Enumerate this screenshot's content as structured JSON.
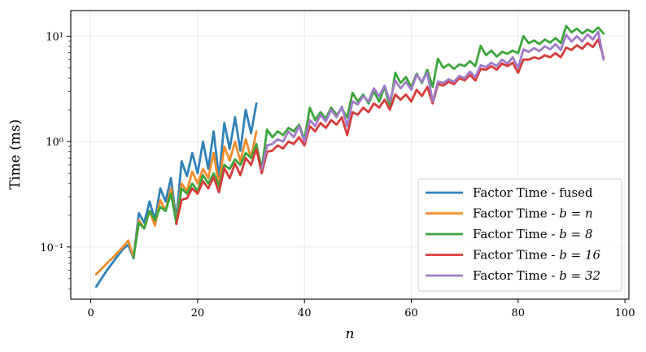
{
  "chart_data": {
    "type": "line",
    "xlabel": "n",
    "ylabel": "Time (ms)",
    "xlim": [
      -3.75,
      100.75
    ],
    "ylim": [
      0.032,
      17.5
    ],
    "yscale": "log",
    "grid": true,
    "legend_position": "bottom-right",
    "x_ticks": [
      0,
      20,
      40,
      60,
      80,
      100
    ],
    "x_tick_labels": [
      "0",
      "20",
      "40",
      "60",
      "80",
      "100"
    ],
    "y_ticks": [
      0.1,
      1,
      10
    ],
    "y_tick_labels": [
      "10⁻¹",
      "10⁰",
      "10¹"
    ],
    "series": [
      {
        "name": "Factor Time - fused",
        "name_prefix": "Factor Time - ",
        "name_math": "fused",
        "color": "#3282b8",
        "x": [
          1,
          2,
          3,
          4,
          5,
          6,
          7,
          8,
          9,
          10,
          11,
          12,
          13,
          14,
          15,
          16,
          17,
          18,
          19,
          20,
          21,
          22,
          23,
          24,
          25,
          26,
          27,
          28,
          29,
          30,
          31
        ],
        "y": [
          0.042,
          0.05,
          0.06,
          0.07,
          0.082,
          0.095,
          0.105,
          0.078,
          0.21,
          0.17,
          0.27,
          0.18,
          0.36,
          0.27,
          0.45,
          0.18,
          0.65,
          0.47,
          0.78,
          0.5,
          1.0,
          0.55,
          1.25,
          0.45,
          1.5,
          0.85,
          1.7,
          0.82,
          2.0,
          1.2,
          2.3
        ]
      },
      {
        "name": "Factor Time - b = n",
        "name_prefix": "Factor Time - ",
        "name_math": "b = n",
        "color": "#f58c2c",
        "x": [
          1,
          2,
          3,
          4,
          5,
          6,
          7,
          8,
          9,
          10,
          11,
          12,
          13,
          14,
          15,
          16,
          17,
          18,
          19,
          20,
          21,
          22,
          23,
          24,
          25,
          26,
          27,
          28,
          29,
          30,
          31
        ],
        "y": [
          0.055,
          0.062,
          0.07,
          0.078,
          0.088,
          0.1,
          0.115,
          0.08,
          0.18,
          0.15,
          0.22,
          0.16,
          0.28,
          0.22,
          0.36,
          0.17,
          0.4,
          0.34,
          0.52,
          0.4,
          0.55,
          0.45,
          0.78,
          0.38,
          0.9,
          0.66,
          1.0,
          0.65,
          1.05,
          0.7,
          1.25
        ]
      },
      {
        "name": "Factor Time - b = 8",
        "name_prefix": "Factor Time - ",
        "name_math": "b = 8",
        "color": "#3ca53c",
        "x": [
          8,
          9,
          10,
          11,
          12,
          13,
          14,
          15,
          16,
          17,
          18,
          19,
          20,
          21,
          22,
          23,
          24,
          25,
          26,
          27,
          28,
          29,
          30,
          31,
          32,
          33,
          34,
          35,
          36,
          37,
          38,
          39,
          40,
          41,
          42,
          43,
          44,
          45,
          46,
          47,
          48,
          49,
          50,
          51,
          52,
          53,
          54,
          55,
          56,
          57,
          58,
          59,
          60,
          61,
          62,
          63,
          64,
          65,
          66,
          67,
          68,
          69,
          70,
          71,
          72,
          73,
          74,
          75,
          76,
          77,
          78,
          79,
          80,
          81,
          82,
          83,
          84,
          85,
          86,
          87,
          88,
          89,
          90,
          91,
          92,
          93,
          94,
          95,
          96
        ],
        "y": [
          0.08,
          0.17,
          0.15,
          0.22,
          0.18,
          0.24,
          0.22,
          0.32,
          0.17,
          0.36,
          0.32,
          0.4,
          0.34,
          0.48,
          0.4,
          0.5,
          0.38,
          0.6,
          0.55,
          0.68,
          0.6,
          0.78,
          0.7,
          0.95,
          0.55,
          1.3,
          1.1,
          1.25,
          1.15,
          1.35,
          1.25,
          1.45,
          1.05,
          2.1,
          1.6,
          1.9,
          1.65,
          2.1,
          1.8,
          2.05,
          1.7,
          2.9,
          2.4,
          2.8,
          2.3,
          3.0,
          2.4,
          3.3,
          2.1,
          4.5,
          3.6,
          4.1,
          3.3,
          4.4,
          3.6,
          4.8,
          3.3,
          6.1,
          5.0,
          5.4,
          4.9,
          5.4,
          5.2,
          5.8,
          5.2,
          8.1,
          6.6,
          7.3,
          6.4,
          7.1,
          6.8,
          7.3,
          6.9,
          10.0,
          8.6,
          9.1,
          8.4,
          9.3,
          8.7,
          9.6,
          8.6,
          12.5,
          10.9,
          11.8,
          10.6,
          11.5,
          10.9,
          12.1,
          10.6
        ]
      },
      {
        "name": "Factor Time - b = 16",
        "name_prefix": "Factor Time - ",
        "name_math": "b = 16",
        "color": "#d73c3c",
        "x": [
          16,
          17,
          18,
          19,
          20,
          21,
          22,
          23,
          24,
          25,
          26,
          27,
          28,
          29,
          30,
          31,
          32,
          33,
          34,
          35,
          36,
          37,
          38,
          39,
          40,
          41,
          42,
          43,
          44,
          45,
          46,
          47,
          48,
          49,
          50,
          51,
          52,
          53,
          54,
          55,
          56,
          57,
          58,
          59,
          60,
          61,
          62,
          63,
          64,
          65,
          66,
          67,
          68,
          69,
          70,
          71,
          72,
          73,
          74,
          75,
          76,
          77,
          78,
          79,
          80,
          81,
          82,
          83,
          84,
          85,
          86,
          87,
          88,
          89,
          90,
          91,
          92,
          93,
          94,
          95,
          96
        ],
        "y": [
          0.165,
          0.28,
          0.29,
          0.36,
          0.32,
          0.42,
          0.36,
          0.46,
          0.33,
          0.56,
          0.45,
          0.62,
          0.48,
          0.7,
          0.6,
          0.85,
          0.5,
          0.8,
          0.82,
          0.92,
          0.86,
          1.0,
          0.95,
          1.1,
          0.92,
          1.4,
          1.25,
          1.5,
          1.35,
          1.6,
          1.45,
          1.7,
          1.15,
          1.9,
          1.8,
          2.1,
          1.9,
          2.3,
          2.1,
          2.5,
          2.0,
          2.8,
          2.5,
          2.8,
          2.4,
          3.1,
          2.7,
          3.3,
          2.3,
          3.5,
          3.4,
          3.7,
          3.5,
          4.0,
          3.8,
          4.3,
          3.8,
          4.9,
          4.8,
          5.2,
          4.8,
          5.5,
          5.2,
          5.6,
          4.5,
          6.0,
          6.0,
          6.3,
          6.1,
          6.6,
          6.3,
          6.9,
          6.3,
          7.8,
          7.4,
          8.2,
          7.6,
          8.6,
          7.9,
          9.3,
          6.3
        ]
      },
      {
        "name": "Factor Time - b = 32",
        "name_prefix": "Factor Time - ",
        "name_math": "b = 32",
        "color": "#a07cc8",
        "x": [
          32,
          33,
          34,
          35,
          36,
          37,
          38,
          39,
          40,
          41,
          42,
          43,
          44,
          45,
          46,
          47,
          48,
          49,
          50,
          51,
          52,
          53,
          54,
          55,
          56,
          57,
          58,
          59,
          60,
          61,
          62,
          63,
          64,
          65,
          66,
          67,
          68,
          69,
          70,
          71,
          72,
          73,
          74,
          75,
          76,
          77,
          78,
          79,
          80,
          81,
          82,
          83,
          84,
          85,
          86,
          87,
          88,
          89,
          90,
          91,
          92,
          93,
          94,
          95,
          96
        ],
        "y": [
          0.55,
          0.92,
          0.95,
          1.05,
          1.0,
          1.25,
          1.1,
          1.4,
          1.0,
          1.6,
          1.4,
          1.8,
          1.55,
          2.0,
          1.7,
          2.15,
          1.4,
          2.4,
          2.25,
          2.7,
          2.4,
          3.2,
          2.7,
          3.4,
          2.4,
          3.8,
          3.2,
          3.7,
          3.1,
          4.3,
          3.7,
          4.5,
          2.4,
          3.7,
          3.6,
          3.9,
          3.7,
          4.2,
          4.0,
          4.6,
          4.1,
          5.3,
          5.1,
          5.6,
          5.2,
          6.0,
          5.5,
          6.3,
          5.0,
          7.5,
          7.1,
          7.7,
          7.2,
          8.0,
          7.5,
          8.4,
          7.4,
          10.3,
          8.9,
          10.0,
          8.9,
          10.4,
          9.3,
          11.0,
          6.0
        ]
      }
    ]
  }
}
